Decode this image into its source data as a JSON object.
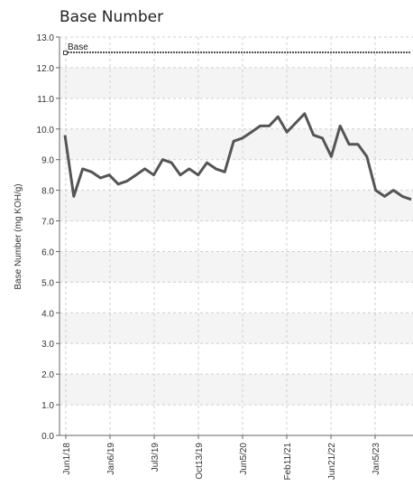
{
  "chart_data": {
    "type": "line",
    "title": "Base Number",
    "ylabel": "Base Number (mg KOH/g)",
    "xlabel": "",
    "ylim": [
      0,
      13
    ],
    "y_ticks": [
      "0.0",
      "1.0",
      "2.0",
      "3.0",
      "4.0",
      "5.0",
      "6.0",
      "7.0",
      "8.0",
      "9.0",
      "10.0",
      "11.0",
      "12.0",
      "13.0"
    ],
    "x_tick_labels": [
      "Jun1/18",
      "Jan6/19",
      "Jul3/19",
      "Oct13/19",
      "Jun5/20",
      "Feb11/21",
      "Jun21/22",
      "Jan5/23"
    ],
    "grid": true,
    "legend_position": "top-left",
    "series": [
      {
        "name": "Base",
        "color": "#555555",
        "style": "dashed",
        "values": [
          12.5,
          12.5
        ]
      },
      {
        "name": "",
        "color": "#555555",
        "style": "solid",
        "values": [
          9.8,
          7.8,
          8.7,
          8.6,
          8.4,
          8.5,
          8.2,
          8.3,
          8.5,
          8.7,
          8.5,
          9.0,
          8.9,
          8.5,
          8.7,
          8.5,
          8.9,
          8.7,
          8.6,
          9.6,
          9.7,
          9.9,
          10.1,
          10.1,
          10.4,
          9.9,
          10.2,
          10.5,
          9.8,
          9.7,
          9.1,
          10.1,
          9.5,
          9.5,
          9.1,
          8.0,
          7.8,
          8.0,
          7.8,
          7.7
        ]
      }
    ]
  }
}
